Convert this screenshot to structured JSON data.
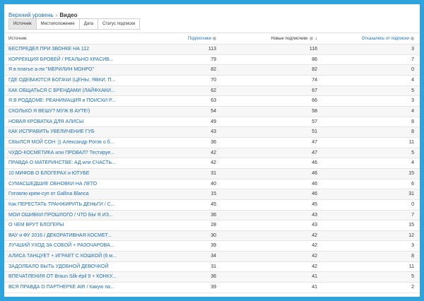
{
  "breadcrumb": {
    "root": "Верхний уровень",
    "separator": "›",
    "current": "Видео"
  },
  "tabs": [
    {
      "label": "Источник",
      "active": true
    },
    {
      "label": "Местоположение"
    },
    {
      "label": "Дата"
    },
    {
      "label": "Статус подписки"
    }
  ],
  "table": {
    "headers": {
      "source": "Источник",
      "subscribers": "Подписчики",
      "new_subscribers": "Новые подписчики",
      "unsubscribed": "Отказались от подписки",
      "sort": "descending by new subscribers"
    },
    "rows": [
      [
        "БЕСПРЕДЕЛ ПРИ ЗВОНКЕ НА 112",
        "113",
        "116",
        "3"
      ],
      [
        "КОРРЕКЦИЯ БРОВЕЙ / РЕАЛЬНО КРАСИВ...",
        "79",
        "86",
        "7"
      ],
      [
        "Я в платье а-ля \"МЕРИЛИН МОНРО\"",
        "82",
        "82",
        "0"
      ],
      [
        "ГДЕ ОДЕВАЮТСЯ БОГАЧИ (ЦЕНЫ, ЯВКИ, П...",
        "70",
        "74",
        "4"
      ],
      [
        "КАК ОБЩАТЬСЯ С БРЕНДАМИ (ЛАЙФХАКИ...",
        "62",
        "67",
        "5"
      ],
      [
        "Я В РОДДОМЕ: РЕАНИМАЦИЯ и ПОИСКИ Р...",
        "63",
        "66",
        "3"
      ],
      [
        "СКОЛЬКО Я ВЕШУ? МУЖ В АУТЕ!)",
        "54",
        "58",
        "4"
      ],
      [
        "НОВАЯ КРОВАТКА ДЛЯ АЛИСЫ",
        "49",
        "57",
        "8"
      ],
      [
        "КАК ИСПРАВИТЬ УВЕЛИЧЕНИЕ ГУБ",
        "43",
        "51",
        "8"
      ],
      [
        "СБЫЛСЯ МОЙ СОН :)) Александр Рогов о б...",
        "36",
        "47",
        "11"
      ],
      [
        "ЧУДО-КОСМЕТИКА или ПРОВАЛ? Тестируе...",
        "42",
        "47",
        "5"
      ],
      [
        "ПРАВДА О МАТЕРИНСТВЕ: АД или СЧАСТЬ...",
        "42",
        "46",
        "4"
      ],
      [
        "10 МИФОВ О БЛОГЕРАХ и ЮТУБЕ",
        "31",
        "46",
        "15"
      ],
      [
        "СУМАСШЕДШИЕ ОБНОВКИ НА ЛЕТО",
        "40",
        "46",
        "6"
      ],
      [
        "Готовлю крем-суп от Gallina Blanca",
        "15",
        "46",
        "31"
      ],
      [
        "Как ПЕРЕСТАТЬ ТРАНЖИРИТЬ ДЕНЬГИ / С...",
        "45",
        "45",
        "0"
      ],
      [
        "МОИ ОШИБКИ ПРОШЛОГО / ЧТО БЫ Я ИЗ...",
        "36",
        "43",
        "7"
      ],
      [
        "О ЧЕМ ВРУТ БЛОГЕРЫ",
        "28",
        "43",
        "15"
      ],
      [
        "ВАУ и ФУ 2016 / ДЕКОРАТИВНАЯ КОСМЕТ...",
        "30",
        "42",
        "12"
      ],
      [
        "ЛУЧШИЙ УХОД ЗА СОБОЙ + РАЗОЧАРОВА...",
        "39",
        "42",
        "3"
      ],
      [
        "АЛИСА ТАНЦУЕТ + ИГРАЕТ С КОШКОЙ (6 м...",
        "34",
        "42",
        "8"
      ],
      [
        "ЗАДОЛБАЛО БЫТЬ УДОБНОЙ ДЕВОЧКОЙ",
        "31",
        "42",
        "11"
      ],
      [
        "ВПЕЧАТЛЕНИЯ ОТ Braun Silk-épil 9 + КОНКУ...",
        "36",
        "41",
        "5"
      ],
      [
        "ВСЯ ПРАВДА О ПАРТНЕРКЕ AIR / Какую па...",
        "39",
        "41",
        "2"
      ]
    ]
  },
  "colors": {
    "frame": "#2ea3dc",
    "link": "#1f6fb5"
  }
}
